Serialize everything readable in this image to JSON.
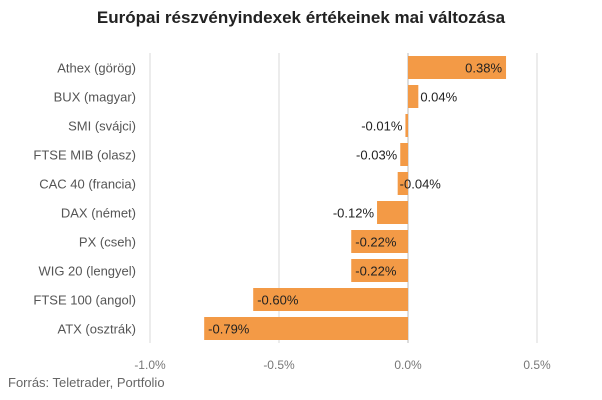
{
  "chart_data": {
    "type": "bar",
    "orientation": "horizontal",
    "title": "Európai részvényindexek értékeinek mai változása",
    "categories": [
      "Athex (görög)",
      "BUX (magyar)",
      "SMI (svájci)",
      "FTSE MIB (olasz)",
      "CAC 40 (francia)",
      "DAX (német)",
      "PX (cseh)",
      "WIG 20 (lengyel)",
      "FTSE 100 (angol)",
      "ATX (osztrák)"
    ],
    "values": [
      0.38,
      0.04,
      -0.01,
      -0.03,
      -0.04,
      -0.12,
      -0.22,
      -0.22,
      -0.6,
      -0.79
    ],
    "value_labels": [
      "0.38%",
      "0.04%",
      "-0.01%",
      "-0.03%",
      "-0.04%",
      "-0.12%",
      "-0.22%",
      "-0.22%",
      "-0.60%",
      "-0.79%"
    ],
    "xlim": [
      -1.0,
      0.5
    ],
    "xticks": [
      -1.0,
      -0.5,
      0.0,
      0.5
    ],
    "xtick_labels": [
      "-1.0%",
      "-0.5%",
      "0.0%",
      "0.5%"
    ],
    "grid": "vertical",
    "colors": {
      "bar": "#F39A46",
      "grid": "#D9D9D9",
      "zero_line": "#BBBBBB"
    }
  },
  "footer": {
    "source": "Forrás: Teletrader, Portfolio"
  }
}
